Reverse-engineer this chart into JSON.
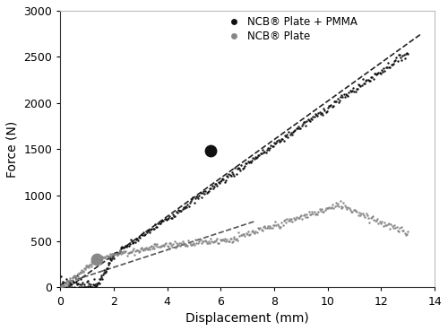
{
  "title": "",
  "xlabel": "Displacement (mm)",
  "ylabel": "Force (N)",
  "xlim": [
    0,
    14
  ],
  "ylim": [
    0,
    3000
  ],
  "xticks": [
    0,
    2,
    4,
    6,
    8,
    10,
    12,
    14
  ],
  "yticks": [
    0,
    500,
    1000,
    1500,
    2000,
    2500,
    3000
  ],
  "legend": [
    "NCB® Plate + PMMA",
    "NCB® Plate"
  ],
  "legend_colors": [
    "#111111",
    "#888888"
  ],
  "bg_color": "#ffffff",
  "series1_color": "#111111",
  "series2_color": "#888888",
  "dashed_color1": "#222222",
  "dashed_color2": "#555555",
  "marker1_x": 5.6,
  "marker1_y": 1480,
  "marker2_x": 1.35,
  "marker2_y": 310,
  "dline1_x0": 0.3,
  "dline1_y0": 0,
  "dline1_x1": 13.5,
  "dline1_y1": 2750,
  "dline2_x0": 0.0,
  "dline2_y0": 30,
  "dline2_x1": 7.3,
  "dline2_y1": 720
}
